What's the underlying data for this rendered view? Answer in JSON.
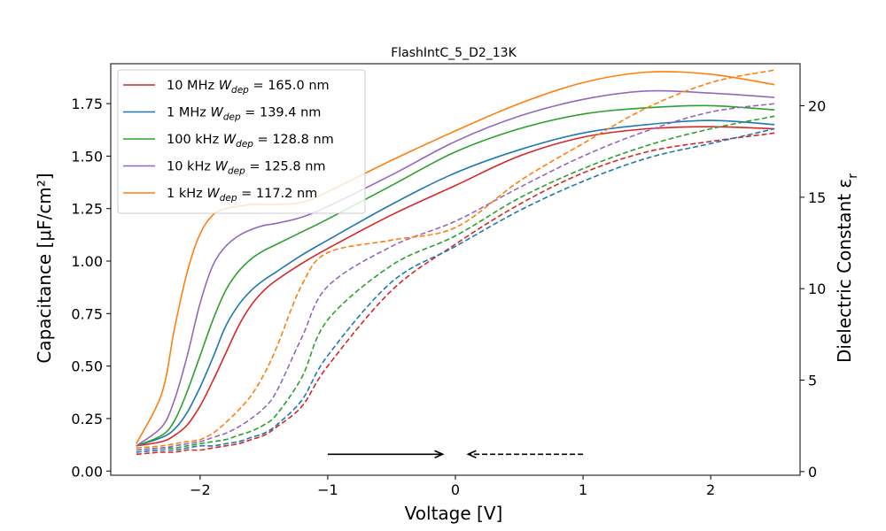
{
  "chart_data": {
    "type": "line",
    "title": "FlashIntC_5_D2_13K",
    "xlabel": "Voltage [V]",
    "ylabel_left": "Capacitance [μF/cm²]",
    "ylabel_right": "Dielectric Constant ε",
    "ylabel_right_sub": "r",
    "xlim": [
      -2.7,
      2.7
    ],
    "ylim_left": [
      -0.02,
      1.94
    ],
    "ylim_right": [
      -0.2,
      22.3
    ],
    "xticks": [
      -2,
      -1,
      0,
      1,
      2
    ],
    "xtick_labels": [
      "−2",
      "−1",
      "0",
      "1",
      "2"
    ],
    "yticks_left": [
      0.0,
      0.25,
      0.5,
      0.75,
      1.0,
      1.25,
      1.5,
      1.75
    ],
    "ytick_labels_left": [
      "0.00",
      "0.25",
      "0.50",
      "0.75",
      "1.00",
      "1.25",
      "1.50",
      "1.75"
    ],
    "yticks_right": [
      0,
      5,
      10,
      15,
      20
    ],
    "ytick_labels_right": [
      "0",
      "5",
      "10",
      "15",
      "20"
    ],
    "grid": false,
    "legend_position": "top-left",
    "series": [
      {
        "name": "10 MHz",
        "wdep": "165.0 nm",
        "color": "#d62728",
        "x": [
          -2.5,
          -2.3,
          -2.2,
          -2.1,
          -2.0,
          -1.9,
          -1.8,
          -1.7,
          -1.6,
          -1.5,
          -1.4,
          -1.2,
          -1.0,
          -0.5,
          0.0,
          0.5,
          1.0,
          1.5,
          2.0,
          2.5
        ],
        "forward": [
          0.12,
          0.14,
          0.17,
          0.22,
          0.31,
          0.43,
          0.56,
          0.69,
          0.79,
          0.86,
          0.91,
          0.99,
          1.06,
          1.22,
          1.36,
          1.5,
          1.59,
          1.63,
          1.64,
          1.63
        ],
        "reverse": [
          0.08,
          0.09,
          0.09,
          0.1,
          0.1,
          0.11,
          0.12,
          0.13,
          0.15,
          0.17,
          0.21,
          0.31,
          0.5,
          0.86,
          1.08,
          1.27,
          1.42,
          1.52,
          1.57,
          1.61
        ]
      },
      {
        "name": "1 MHz",
        "wdep": "139.4 nm",
        "color": "#1f77b4",
        "x": [
          -2.5,
          -2.3,
          -2.2,
          -2.1,
          -2.0,
          -1.9,
          -1.8,
          -1.7,
          -1.6,
          -1.5,
          -1.4,
          -1.2,
          -1.0,
          -0.5,
          0.0,
          0.5,
          1.0,
          1.5,
          2.0,
          2.5
        ],
        "forward": [
          0.12,
          0.16,
          0.2,
          0.28,
          0.4,
          0.54,
          0.69,
          0.79,
          0.86,
          0.91,
          0.95,
          1.03,
          1.1,
          1.27,
          1.42,
          1.53,
          1.61,
          1.65,
          1.67,
          1.65
        ],
        "reverse": [
          0.09,
          0.1,
          0.1,
          0.11,
          0.12,
          0.12,
          0.13,
          0.14,
          0.16,
          0.18,
          0.22,
          0.34,
          0.55,
          0.9,
          1.07,
          1.24,
          1.38,
          1.49,
          1.56,
          1.63
        ]
      },
      {
        "name": "100 kHz",
        "wdep": "128.8 nm",
        "color": "#2ca02c",
        "x": [
          -2.5,
          -2.3,
          -2.2,
          -2.1,
          -2.0,
          -1.9,
          -1.8,
          -1.7,
          -1.6,
          -1.5,
          -1.4,
          -1.2,
          -1.0,
          -0.5,
          0.0,
          0.5,
          1.0,
          1.5,
          2.0,
          2.5
        ],
        "forward": [
          0.12,
          0.17,
          0.24,
          0.38,
          0.55,
          0.72,
          0.86,
          0.95,
          1.01,
          1.05,
          1.08,
          1.14,
          1.2,
          1.36,
          1.52,
          1.63,
          1.7,
          1.73,
          1.74,
          1.72
        ],
        "reverse": [
          0.1,
          0.11,
          0.11,
          0.12,
          0.13,
          0.14,
          0.15,
          0.17,
          0.19,
          0.22,
          0.27,
          0.45,
          0.72,
          0.98,
          1.12,
          1.3,
          1.44,
          1.55,
          1.63,
          1.69
        ]
      },
      {
        "name": "10 kHz",
        "wdep": "125.8 nm",
        "color": "#9467bd",
        "x": [
          -2.5,
          -2.3,
          -2.2,
          -2.1,
          -2.0,
          -1.9,
          -1.8,
          -1.7,
          -1.6,
          -1.5,
          -1.4,
          -1.2,
          -1.0,
          -0.5,
          0.0,
          0.5,
          1.0,
          1.5,
          2.0,
          2.5
        ],
        "forward": [
          0.12,
          0.21,
          0.34,
          0.55,
          0.8,
          0.98,
          1.07,
          1.12,
          1.15,
          1.17,
          1.18,
          1.21,
          1.26,
          1.41,
          1.57,
          1.69,
          1.77,
          1.81,
          1.8,
          1.78
        ],
        "reverse": [
          0.1,
          0.11,
          0.12,
          0.13,
          0.14,
          0.16,
          0.18,
          0.21,
          0.25,
          0.3,
          0.38,
          0.64,
          0.88,
          1.07,
          1.19,
          1.35,
          1.5,
          1.62,
          1.71,
          1.75
        ]
      },
      {
        "name": "1 kHz",
        "wdep": "117.2 nm",
        "color": "#ff7f0e",
        "x": [
          -2.5,
          -2.3,
          -2.2,
          -2.1,
          -2.0,
          -1.9,
          -1.8,
          -1.7,
          -1.6,
          -1.5,
          -1.4,
          -1.2,
          -1.0,
          -0.5,
          0.0,
          0.5,
          1.0,
          1.5,
          2.0,
          2.5
        ],
        "forward": [
          0.13,
          0.37,
          0.68,
          0.95,
          1.13,
          1.22,
          1.25,
          1.26,
          1.27,
          1.27,
          1.27,
          1.28,
          1.33,
          1.48,
          1.62,
          1.75,
          1.85,
          1.9,
          1.89,
          1.84
        ],
        "reverse": [
          0.11,
          0.12,
          0.13,
          0.14,
          0.15,
          0.18,
          0.23,
          0.29,
          0.36,
          0.46,
          0.59,
          0.89,
          1.04,
          1.1,
          1.16,
          1.38,
          1.56,
          1.73,
          1.85,
          1.91
        ]
      }
    ],
    "annotations": [
      {
        "type": "arrow",
        "style": "solid",
        "from": [
          -1.0,
          0.08
        ],
        "to": [
          -0.1,
          0.08
        ]
      },
      {
        "type": "arrow",
        "style": "dashed",
        "from": [
          1.0,
          0.08
        ],
        "to": [
          0.1,
          0.08
        ]
      }
    ]
  }
}
